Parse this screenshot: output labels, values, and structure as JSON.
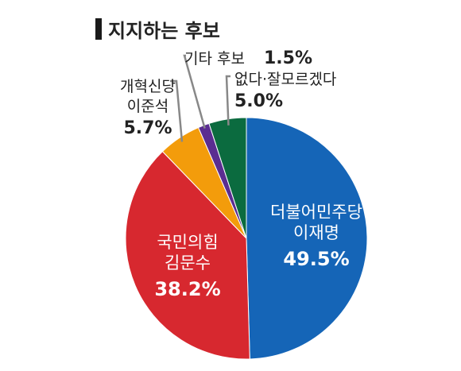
{
  "chart_data": {
    "type": "pie",
    "title": "지지하는 후보",
    "slices": [
      {
        "party": "더불어민주당",
        "candidate": "이재명",
        "value": 49.5,
        "value_label": "49.5%",
        "color": "#1565b7"
      },
      {
        "party": "국민의힘",
        "candidate": "김문수",
        "value": 38.2,
        "value_label": "38.2%",
        "color": "#d7282f"
      },
      {
        "party": "개혁신당",
        "candidate": "이준석",
        "value": 5.7,
        "value_label": "5.7%",
        "color": "#f39c0b"
      },
      {
        "party": "",
        "candidate": "기타 후보",
        "value": 1.5,
        "value_label": "1.5%",
        "color": "#5a2d91"
      },
      {
        "party": "",
        "candidate": "없다·잘모르겠다",
        "value": 5.0,
        "value_label": "5.0%",
        "color": "#0b6b3f"
      }
    ],
    "start": "12 o'clock",
    "direction": "clockwise",
    "legend": "none"
  }
}
